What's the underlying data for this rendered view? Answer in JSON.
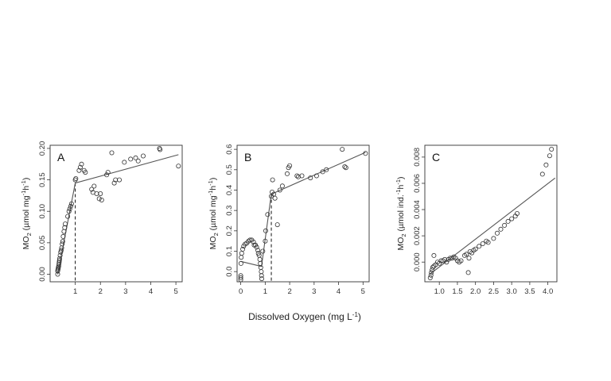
{
  "figure": {
    "xlabel_main": "Dissolved Oxygen (mg L",
    "xlabel_sup": "-1",
    "xlabel_end": ")"
  },
  "chart_data": [
    {
      "type": "scatter",
      "panel": "A",
      "xlim": [
        0,
        5.25
      ],
      "ylim": [
        -0.012,
        0.205
      ],
      "xticks": [
        1,
        2,
        3,
        4,
        5
      ],
      "yticks": [
        0.0,
        0.05,
        0.1,
        0.15,
        0.2
      ],
      "ytick_labels": [
        "0.00",
        "0.05",
        "0.10",
        "0.15",
        "0.20"
      ],
      "ylabel": {
        "pre": "MO",
        "sub": "2",
        "mid": " (µmol mg",
        "sup1": "-1",
        "mid2": "h",
        "sup2": "-1",
        "end": ")"
      },
      "breakpoint": 1.0,
      "fit_line": {
        "x": [
          0.3,
          1.0,
          5.1
        ],
        "y": [
          0.0,
          0.145,
          0.19
        ]
      },
      "points": [
        [
          0.3,
          0.0
        ],
        [
          0.3,
          0.005
        ],
        [
          0.31,
          0.007
        ],
        [
          0.32,
          0.009
        ],
        [
          0.33,
          0.011
        ],
        [
          0.34,
          0.013
        ],
        [
          0.35,
          0.016
        ],
        [
          0.36,
          0.019
        ],
        [
          0.37,
          0.022
        ],
        [
          0.38,
          0.025
        ],
        [
          0.4,
          0.03
        ],
        [
          0.42,
          0.035
        ],
        [
          0.44,
          0.038
        ],
        [
          0.46,
          0.042
        ],
        [
          0.48,
          0.048
        ],
        [
          0.5,
          0.052
        ],
        [
          0.52,
          0.06
        ],
        [
          0.55,
          0.068
        ],
        [
          0.58,
          0.074
        ],
        [
          0.6,
          0.08
        ],
        [
          0.7,
          0.092
        ],
        [
          0.75,
          0.1
        ],
        [
          0.78,
          0.104
        ],
        [
          0.82,
          0.108
        ],
        [
          0.85,
          0.112
        ],
        [
          1.0,
          0.15
        ],
        [
          1.02,
          0.152
        ],
        [
          1.15,
          0.165
        ],
        [
          1.2,
          0.17
        ],
        [
          1.25,
          0.175
        ],
        [
          1.35,
          0.165
        ],
        [
          1.4,
          0.162
        ],
        [
          1.65,
          0.135
        ],
        [
          1.7,
          0.13
        ],
        [
          1.75,
          0.14
        ],
        [
          1.85,
          0.128
        ],
        [
          1.95,
          0.12
        ],
        [
          2.0,
          0.128
        ],
        [
          2.05,
          0.118
        ],
        [
          2.25,
          0.158
        ],
        [
          2.3,
          0.162
        ],
        [
          2.45,
          0.193
        ],
        [
          2.55,
          0.145
        ],
        [
          2.6,
          0.15
        ],
        [
          2.75,
          0.15
        ],
        [
          2.95,
          0.178
        ],
        [
          3.2,
          0.183
        ],
        [
          3.4,
          0.185
        ],
        [
          3.5,
          0.18
        ],
        [
          3.7,
          0.188
        ],
        [
          4.35,
          0.2
        ],
        [
          4.37,
          0.198
        ],
        [
          5.1,
          0.172
        ]
      ]
    },
    {
      "type": "scatter",
      "panel": "B",
      "xlim": [
        -0.15,
        5.25
      ],
      "ylim": [
        -0.05,
        0.62
      ],
      "xticks": [
        0,
        1,
        2,
        3,
        4,
        5
      ],
      "yticks": [
        0.0,
        0.1,
        0.2,
        0.3,
        0.4,
        0.5,
        0.6
      ],
      "ytick_labels": [
        "0.0",
        "0.1",
        "0.2",
        "0.3",
        "0.4",
        "0.5",
        "0.6"
      ],
      "ylabel": {
        "pre": "MO",
        "sub": "2",
        "mid": " (µmol mg",
        "sup1": "-1",
        "mid2": "h",
        "sup2": "-1",
        "end": ")"
      },
      "breakpoint": 1.25,
      "fit_line": {
        "x": [
          0.0,
          0.85,
          1.25,
          5.1
        ],
        "y": [
          0.05,
          0.025,
          0.38,
          0.585
        ]
      },
      "points": [
        [
          0.0,
          -0.02
        ],
        [
          0.0,
          -0.04
        ],
        [
          0.0,
          -0.03
        ],
        [
          0.01,
          0.04
        ],
        [
          0.02,
          0.07
        ],
        [
          0.04,
          0.09
        ],
        [
          0.08,
          0.11
        ],
        [
          0.12,
          0.125
        ],
        [
          0.18,
          0.135
        ],
        [
          0.25,
          0.14
        ],
        [
          0.32,
          0.15
        ],
        [
          0.38,
          0.155
        ],
        [
          0.45,
          0.155
        ],
        [
          0.52,
          0.145
        ],
        [
          0.55,
          0.13
        ],
        [
          0.6,
          0.13
        ],
        [
          0.65,
          0.12
        ],
        [
          0.7,
          0.105
        ],
        [
          0.72,
          0.09
        ],
        [
          0.75,
          0.08
        ],
        [
          0.78,
          0.06
        ],
        [
          0.8,
          0.04
        ],
        [
          0.82,
          0.02
        ],
        [
          0.84,
          0.0
        ],
        [
          0.85,
          -0.02
        ],
        [
          0.86,
          -0.035
        ],
        [
          0.9,
          0.1
        ],
        [
          1.0,
          0.15
        ],
        [
          1.02,
          0.2
        ],
        [
          1.1,
          0.28
        ],
        [
          1.25,
          0.37
        ],
        [
          1.28,
          0.39
        ],
        [
          1.3,
          0.45
        ],
        [
          1.35,
          0.38
        ],
        [
          1.4,
          0.36
        ],
        [
          1.5,
          0.23
        ],
        [
          1.6,
          0.4
        ],
        [
          1.7,
          0.42
        ],
        [
          1.9,
          0.48
        ],
        [
          1.95,
          0.51
        ],
        [
          2.0,
          0.52
        ],
        [
          2.3,
          0.47
        ],
        [
          2.35,
          0.465
        ],
        [
          2.5,
          0.47
        ],
        [
          2.85,
          0.46
        ],
        [
          3.1,
          0.47
        ],
        [
          3.35,
          0.49
        ],
        [
          3.5,
          0.5
        ],
        [
          4.15,
          0.6
        ],
        [
          4.25,
          0.515
        ],
        [
          4.3,
          0.51
        ],
        [
          5.1,
          0.58
        ]
      ]
    },
    {
      "type": "scatter",
      "panel": "C",
      "xlim": [
        0.6,
        4.25
      ],
      "ylim": [
        -0.0015,
        0.0089
      ],
      "xticks": [
        1.0,
        1.5,
        2.0,
        2.5,
        3.0,
        3.5,
        4.0
      ],
      "xtick_labels": [
        "1.0",
        "1.5",
        "2.0",
        "2.5",
        "3.0",
        "3.5",
        "4.0"
      ],
      "yticks": [
        0.0,
        0.002,
        0.004,
        0.006,
        0.008
      ],
      "ytick_labels": [
        "0.000",
        "0.002",
        "0.004",
        "0.006",
        "0.008"
      ],
      "ylabel": {
        "pre": "MO",
        "sub": "2",
        "mid": " (µmol ind.",
        "sup1": "-1",
        "mid2": "h",
        "sup2": "-1",
        "end": ")"
      },
      "fit_line": {
        "x": [
          0.75,
          4.2
        ],
        "y": [
          -0.0009,
          0.0064
        ]
      },
      "points": [
        [
          0.75,
          -0.0012
        ],
        [
          0.77,
          -0.001
        ],
        [
          0.78,
          -0.0008
        ],
        [
          0.8,
          -0.0006
        ],
        [
          0.82,
          -0.0004
        ],
        [
          0.85,
          -0.0003
        ],
        [
          0.85,
          0.0005
        ],
        [
          0.9,
          -0.0002
        ],
        [
          0.95,
          0.0
        ],
        [
          1.0,
          -0.0001
        ],
        [
          1.05,
          0.0001
        ],
        [
          1.1,
          0.0001
        ],
        [
          1.15,
          0.0002
        ],
        [
          1.2,
          0.0
        ],
        [
          1.25,
          0.0002
        ],
        [
          1.3,
          0.0003
        ],
        [
          1.35,
          0.0003
        ],
        [
          1.4,
          0.0004
        ],
        [
          1.45,
          0.0003
        ],
        [
          1.5,
          0.0001
        ],
        [
          1.55,
          0.0
        ],
        [
          1.6,
          0.0001
        ],
        [
          1.7,
          0.0005
        ],
        [
          1.75,
          0.0006
        ],
        [
          1.8,
          -0.0008
        ],
        [
          1.82,
          0.0003
        ],
        [
          1.85,
          0.0008
        ],
        [
          1.9,
          0.0007
        ],
        [
          1.95,
          0.0009
        ],
        [
          2.0,
          0.001
        ],
        [
          2.1,
          0.0012
        ],
        [
          2.2,
          0.0014
        ],
        [
          2.3,
          0.0016
        ],
        [
          2.35,
          0.0015
        ],
        [
          2.5,
          0.0018
        ],
        [
          2.6,
          0.0022
        ],
        [
          2.7,
          0.0025
        ],
        [
          2.8,
          0.0028
        ],
        [
          2.9,
          0.0031
        ],
        [
          3.0,
          0.0033
        ],
        [
          3.1,
          0.0035
        ],
        [
          3.15,
          0.0037
        ],
        [
          3.85,
          0.0067
        ],
        [
          3.95,
          0.0074
        ],
        [
          4.05,
          0.0081
        ],
        [
          4.1,
          0.0086
        ]
      ]
    }
  ]
}
